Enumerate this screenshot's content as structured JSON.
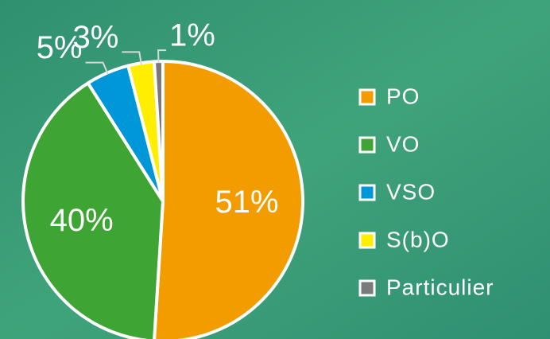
{
  "chart_data": {
    "type": "pie",
    "categories": [
      "PO",
      "VO",
      "VSO",
      "S(b)O",
      "Particulier"
    ],
    "values": [
      51,
      40,
      5,
      3,
      1
    ],
    "value_labels": [
      "51%",
      "40%",
      "5%",
      "3%",
      "1%"
    ],
    "colors": [
      "#f39c00",
      "#3ea535",
      "#0097d9",
      "#ffee00",
      "#7a7a7a"
    ],
    "legend": "right"
  }
}
